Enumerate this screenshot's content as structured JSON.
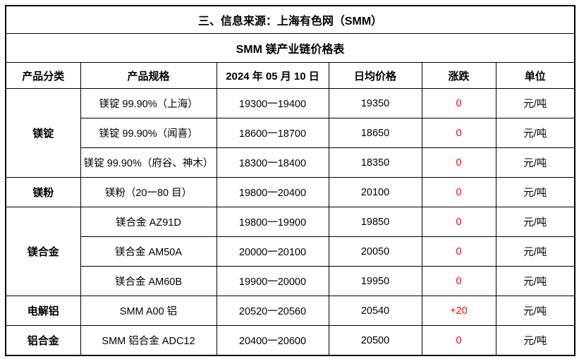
{
  "title": "三、信息来源：上海有色网（SMM）",
  "subtitle": "SMM 镁产业链价格表",
  "table": {
    "headers": [
      "产品分类",
      "产品规格",
      "2024 年 05 月 10 日",
      "日均价格",
      "涨跌",
      "单位"
    ],
    "groups": [
      {
        "category": "镁锭",
        "rows": [
          {
            "spec": "镁锭 99.90%（上海）",
            "range": "19300一19400",
            "avg": "19350",
            "change": "0",
            "unit": "元/吨"
          },
          {
            "spec": "镁锭 99.90%（闻喜）",
            "range": "18600一18700",
            "avg": "18650",
            "change": "0",
            "unit": "元/吨"
          },
          {
            "spec": "镁锭 99.90%（府谷、神木）",
            "range": "18300一18400",
            "avg": "18350",
            "change": "0",
            "unit": "元/吨"
          }
        ]
      },
      {
        "category": "镁粉",
        "rows": [
          {
            "spec": "镁粉（20一80 目）",
            "range": "19800一20400",
            "avg": "20100",
            "change": "0",
            "unit": "元/吨"
          }
        ]
      },
      {
        "category": "镁合金",
        "rows": [
          {
            "spec": "镁合金 AZ91D",
            "range": "19800一19900",
            "avg": "19850",
            "change": "0",
            "unit": "元/吨"
          },
          {
            "spec": "镁合金 AM50A",
            "range": "20000一20100",
            "avg": "20050",
            "change": "0",
            "unit": "元/吨"
          },
          {
            "spec": "镁合金 AM60B",
            "range": "19900一20000",
            "avg": "19950",
            "change": "0",
            "unit": "元/吨"
          }
        ]
      },
      {
        "category": "电解铝",
        "rows": [
          {
            "spec": "SMM A00 铝",
            "range": "20520一20560",
            "avg": "20540",
            "change": "+20",
            "unit": "元/吨"
          }
        ]
      },
      {
        "category": "铝合金",
        "rows": [
          {
            "spec": "SMM  铝合金 ADC12",
            "range": "20400一20600",
            "avg": "20500",
            "change": "0",
            "unit": "元/吨"
          }
        ]
      }
    ]
  },
  "colors": {
    "change_value": "#FF0000",
    "border": "#000000",
    "text": "#000000",
    "background": "#FFFFFF"
  }
}
